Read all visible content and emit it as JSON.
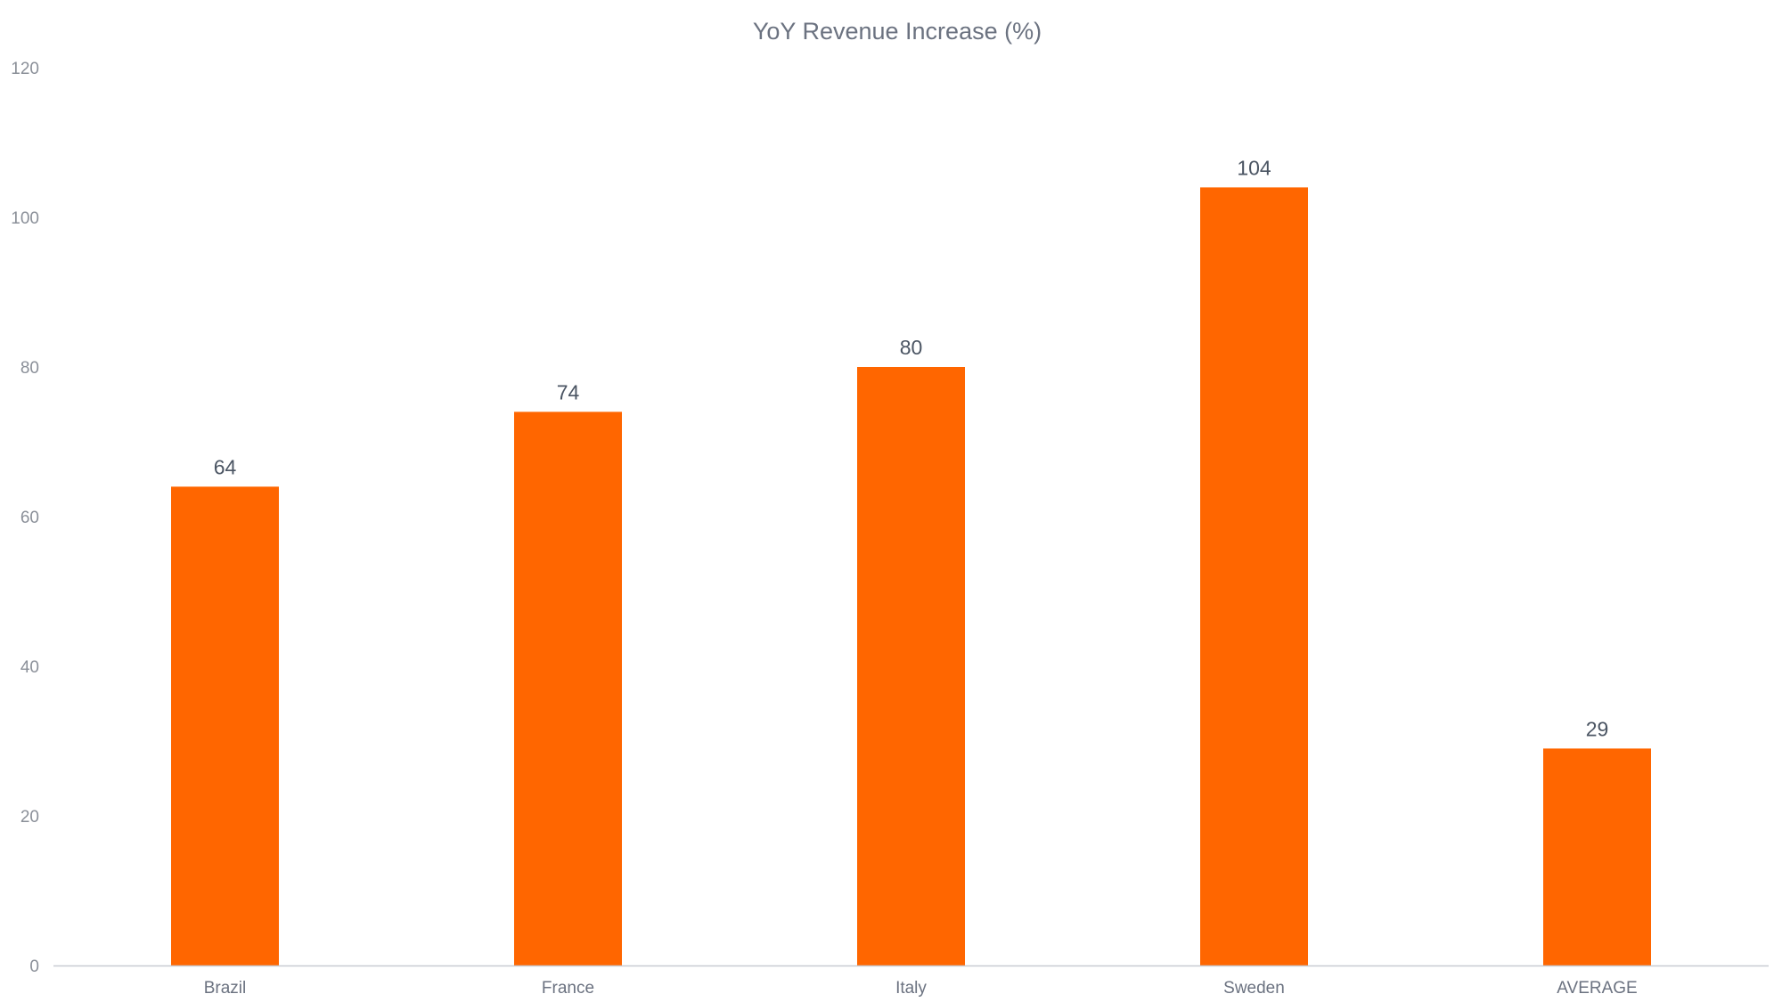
{
  "chart_data": {
    "type": "bar",
    "title": "YoY Revenue Increase (%)",
    "xlabel": "",
    "ylabel": "",
    "categories": [
      "Brazil",
      "France",
      "Italy",
      "Sweden",
      "AVERAGE"
    ],
    "values": [
      64,
      74,
      80,
      104,
      29
    ],
    "data_labels": [
      "64",
      "74",
      "80",
      "104",
      "29"
    ],
    "ylim": [
      0,
      120
    ],
    "yticks": [
      0,
      20,
      40,
      60,
      80,
      100,
      120
    ],
    "grid": false,
    "legend": "none",
    "bar_color": "#ff6600",
    "axis_color": "#c8ccd2"
  }
}
